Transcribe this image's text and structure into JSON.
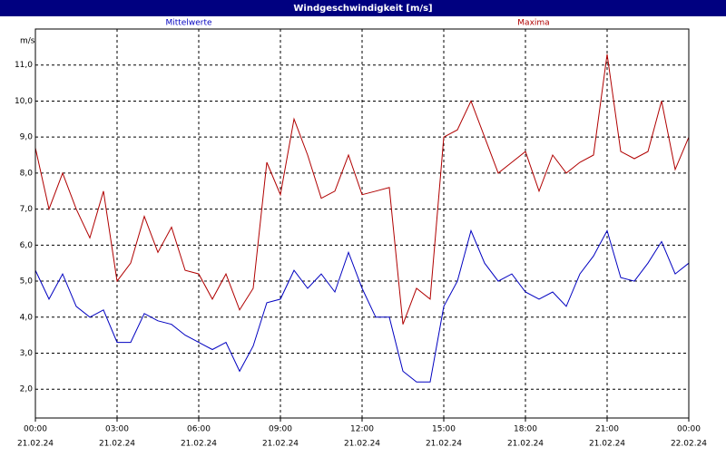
{
  "chart_data": {
    "type": "line",
    "title": "Windgeschwindigkeit [m/s]",
    "y_label": "m/s",
    "x": [
      0,
      0.5,
      1,
      1.5,
      2,
      2.5,
      3,
      3.5,
      4,
      4.5,
      5,
      5.5,
      6,
      6.5,
      7,
      7.5,
      8,
      8.5,
      9,
      9.5,
      10,
      10.5,
      11,
      11.5,
      12,
      12.5,
      13,
      13.5,
      14,
      14.5,
      15,
      15.5,
      16,
      16.5,
      17,
      17.5,
      18,
      18.5,
      19,
      19.5,
      20,
      20.5,
      21,
      21.5,
      22,
      22.5,
      23,
      23.5,
      24
    ],
    "series": [
      {
        "name": "Mittelwerte",
        "color": "#0000c0",
        "values": [
          5.3,
          4.5,
          5.2,
          4.3,
          4.0,
          4.2,
          3.3,
          3.3,
          4.1,
          3.9,
          3.8,
          3.5,
          3.3,
          3.1,
          3.3,
          2.5,
          3.2,
          4.4,
          4.5,
          5.3,
          4.8,
          5.2,
          4.7,
          5.8,
          4.8,
          4.0,
          4.0,
          2.5,
          2.2,
          2.2,
          4.3,
          5.0,
          6.4,
          5.5,
          5.0,
          5.2,
          4.7,
          4.5,
          4.7,
          4.3,
          5.2,
          5.7,
          6.4,
          5.1,
          5.0,
          5.5,
          6.1,
          5.2,
          5.5
        ]
      },
      {
        "name": "Maxima",
        "color": "#b00000",
        "values": [
          8.7,
          7.0,
          8.0,
          7.0,
          6.2,
          7.5,
          5.0,
          5.5,
          6.8,
          5.8,
          6.5,
          5.3,
          5.2,
          4.5,
          5.2,
          4.2,
          4.8,
          8.3,
          7.4,
          9.5,
          8.5,
          7.3,
          7.5,
          8.5,
          7.4,
          7.5,
          7.6,
          3.8,
          4.8,
          4.5,
          9.0,
          9.2,
          10.0,
          9.0,
          8.0,
          8.3,
          8.6,
          7.5,
          8.5,
          8.0,
          8.3,
          8.5,
          11.3,
          8.6,
          8.4,
          8.6,
          10.0,
          8.1,
          9.0
        ]
      }
    ],
    "xlim": [
      0,
      24
    ],
    "xticks": [
      {
        "value": 0,
        "label": "00:00"
      },
      {
        "value": 3,
        "label": "03:00"
      },
      {
        "value": 6,
        "label": "06:00"
      },
      {
        "value": 9,
        "label": "09:00"
      },
      {
        "value": 12,
        "label": "12:00"
      },
      {
        "value": 15,
        "label": "15:00"
      },
      {
        "value": 18,
        "label": "18:00"
      },
      {
        "value": 21,
        "label": "21:00"
      },
      {
        "value": 24,
        "label": "00:00"
      }
    ],
    "xtick_dates": [
      "21.02.24",
      "21.02.24",
      "21.02.24",
      "21.02.24",
      "21.02.24",
      "21.02.24",
      "21.02.24",
      "21.02.24",
      "22.02.24"
    ],
    "ylim": [
      1.2,
      12.0
    ],
    "yticks": [
      {
        "value": 2,
        "label": "2,0"
      },
      {
        "value": 3,
        "label": "3,0"
      },
      {
        "value": 4,
        "label": "4,0"
      },
      {
        "value": 5,
        "label": "5,0"
      },
      {
        "value": 6,
        "label": "6,0"
      },
      {
        "value": 7,
        "label": "7,0"
      },
      {
        "value": 8,
        "label": "8,0"
      },
      {
        "value": 9,
        "label": "9,0"
      },
      {
        "value": 10,
        "label": "10,0"
      },
      {
        "value": 11,
        "label": "11,0"
      }
    ],
    "grid": true
  }
}
